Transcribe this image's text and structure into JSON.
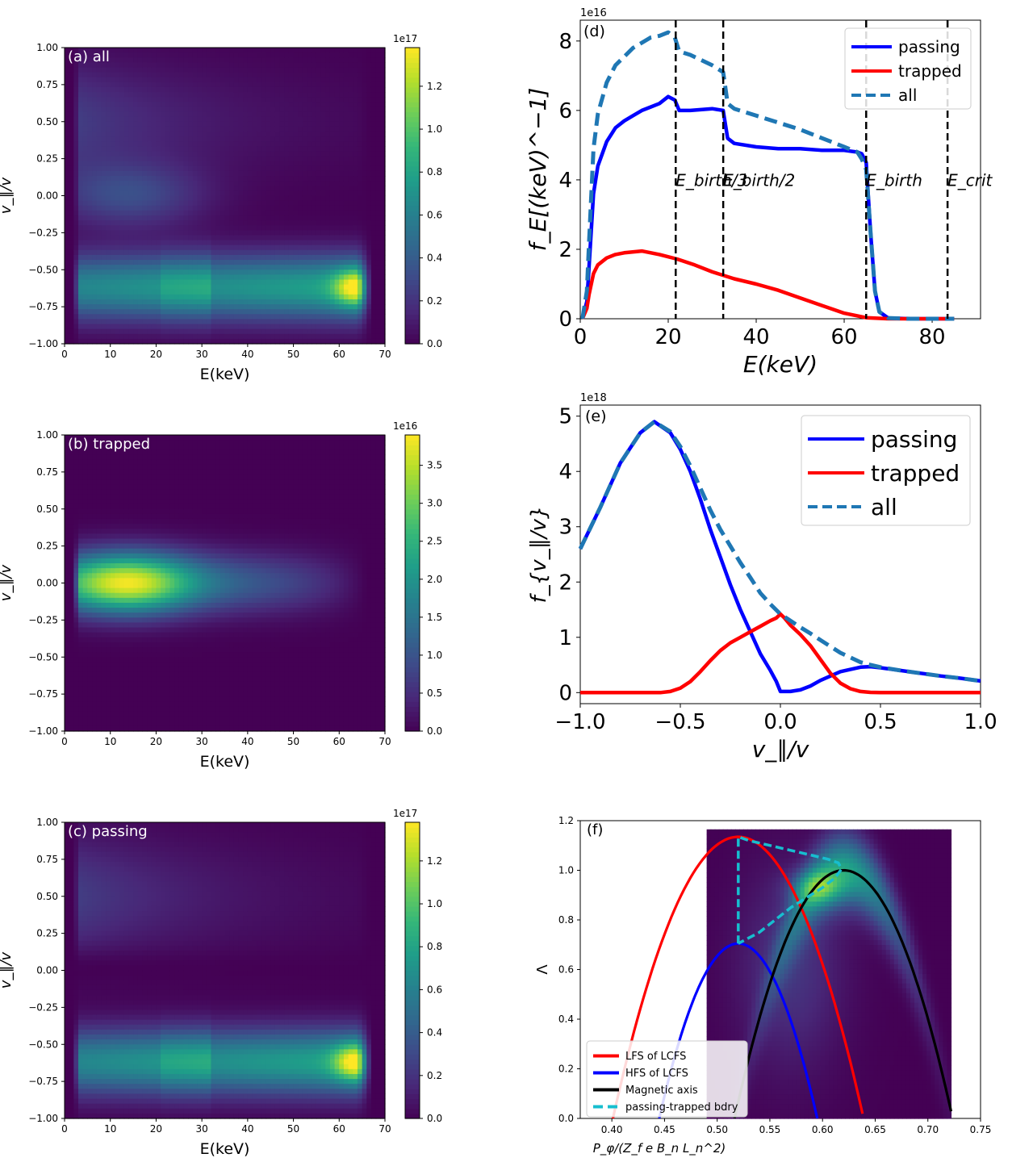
{
  "chart_data": [
    {
      "panel": "a",
      "type": "heatmap",
      "label": "(a) all",
      "xlabel": "E(keV)",
      "ylabel": "v_∥/v",
      "xlim": [
        0,
        70
      ],
      "ylim": [
        -1.0,
        1.0
      ],
      "xticks": [
        "0",
        "10",
        "20",
        "30",
        "40",
        "50",
        "60",
        "70"
      ],
      "yticks": [
        "−1.00",
        "−0.75",
        "−0.50",
        "−0.25",
        "0.00",
        "0.25",
        "0.50",
        "0.75",
        "1.00"
      ],
      "colorbar": {
        "exponent": "1e17",
        "min": 0,
        "max": 1.38,
        "ticks": [
          "0.0",
          "0.2",
          "0.4",
          "0.6",
          "0.8",
          "1.0",
          "1.2"
        ]
      },
      "peaks": [
        {
          "e": 64,
          "xi": -0.62,
          "value": 1.38
        },
        {
          "e": 30,
          "xi": -0.6,
          "value": 0.75
        },
        {
          "e": 15,
          "xi": 0.4,
          "value": 0.25
        }
      ]
    },
    {
      "panel": "b",
      "type": "heatmap",
      "label": "(b) trapped",
      "xlabel": "E(keV)",
      "ylabel": "v_∥/v",
      "xlim": [
        0,
        70
      ],
      "ylim": [
        -1.0,
        1.0
      ],
      "xticks": [
        "0",
        "10",
        "20",
        "30",
        "40",
        "50",
        "60",
        "70"
      ],
      "yticks": [
        "−1.00",
        "−0.75",
        "−0.50",
        "−0.25",
        "0.00",
        "0.25",
        "0.50",
        "0.75",
        "1.00"
      ],
      "colorbar": {
        "exponent": "1e16",
        "min": 0,
        "max": 3.9,
        "ticks": [
          "0.0",
          "0.5",
          "1.0",
          "1.5",
          "2.0",
          "2.5",
          "3.0",
          "3.5"
        ]
      },
      "peaks": [
        {
          "e": 14,
          "xi": 0.0,
          "value": 3.9
        }
      ]
    },
    {
      "panel": "c",
      "type": "heatmap",
      "label": "(c) passing",
      "xlabel": "E(keV)",
      "ylabel": "v_∥/v",
      "xlim": [
        0,
        70
      ],
      "ylim": [
        -1.0,
        1.0
      ],
      "xticks": [
        "0",
        "10",
        "20",
        "30",
        "40",
        "50",
        "60",
        "70"
      ],
      "yticks": [
        "−1.00",
        "−0.75",
        "−0.50",
        "−0.25",
        "0.00",
        "0.25",
        "0.50",
        "0.75",
        "1.00"
      ],
      "colorbar": {
        "exponent": "1e17",
        "min": 0,
        "max": 1.38,
        "ticks": [
          "0.0",
          "0.2",
          "0.4",
          "0.6",
          "0.8",
          "1.0",
          "1.2"
        ]
      },
      "peaks": [
        {
          "e": 64,
          "xi": -0.62,
          "value": 1.38
        },
        {
          "e": 30,
          "xi": -0.6,
          "value": 0.75
        },
        {
          "e": 15,
          "xi": 0.55,
          "value": 0.25
        }
      ]
    },
    {
      "panel": "d",
      "type": "line",
      "label": "(d)",
      "xlabel": "E(keV)",
      "ylabel": "f_E[(keV)^−1]",
      "exponent": "1e16",
      "xlim": [
        0,
        91
      ],
      "ylim": [
        0,
        8.6
      ],
      "xticks": [
        0,
        20,
        40,
        60,
        80
      ],
      "yticks": [
        0,
        2,
        4,
        6,
        8
      ],
      "series": [
        {
          "name": "passing",
          "color": "#0000ff",
          "dash": false,
          "x": [
            0.5,
            1.5,
            2,
            3,
            4,
            6,
            8,
            10,
            12,
            14,
            16,
            18,
            20,
            21.5,
            22.5,
            25,
            30,
            32.5,
            33.5,
            35,
            40,
            45,
            50,
            55,
            60,
            63,
            64,
            65,
            66,
            67,
            68,
            70,
            75,
            85
          ],
          "y": [
            0,
            0.5,
            1.5,
            3.6,
            4.4,
            5.1,
            5.5,
            5.7,
            5.85,
            6.0,
            6.1,
            6.2,
            6.4,
            6.3,
            6.0,
            6.0,
            6.05,
            6.0,
            5.2,
            5.05,
            4.95,
            4.9,
            4.9,
            4.85,
            4.85,
            4.8,
            4.75,
            4.5,
            2.5,
            0.8,
            0.2,
            0.02,
            0,
            0
          ]
        },
        {
          "name": "trapped",
          "color": "#ff0000",
          "dash": false,
          "x": [
            0.5,
            1.5,
            2,
            3,
            4,
            6,
            8,
            10,
            14,
            18,
            22,
            26,
            30,
            35,
            40,
            45,
            50,
            55,
            60,
            65,
            70,
            75,
            85
          ],
          "y": [
            0,
            0.3,
            0.7,
            1.3,
            1.55,
            1.75,
            1.85,
            1.9,
            1.95,
            1.85,
            1.72,
            1.55,
            1.35,
            1.15,
            1.0,
            0.82,
            0.6,
            0.38,
            0.16,
            0.03,
            0,
            0,
            0
          ]
        },
        {
          "name": "all",
          "color": "#1f77b4",
          "dash": true,
          "x": [
            0.5,
            1.5,
            2,
            3,
            4,
            6,
            8,
            10,
            12,
            14,
            16,
            18,
            20,
            21.5,
            22.5,
            25,
            30,
            32.5,
            33.5,
            35,
            40,
            45,
            50,
            55,
            60,
            63,
            64,
            65,
            66,
            67,
            68,
            70,
            75,
            85
          ],
          "y": [
            0,
            0.8,
            2.2,
            4.9,
            5.9,
            6.8,
            7.3,
            7.55,
            7.8,
            7.95,
            8.1,
            8.15,
            8.25,
            8.1,
            7.7,
            7.6,
            7.3,
            7.1,
            6.2,
            6.05,
            5.85,
            5.65,
            5.45,
            5.2,
            4.95,
            4.8,
            4.6,
            4.3,
            2.5,
            0.8,
            0.2,
            0.02,
            0,
            0
          ]
        }
      ],
      "vlines": [
        {
          "x": 21.7,
          "label": "E_birth/3"
        },
        {
          "x": 32.5,
          "label": "E_birth/2"
        },
        {
          "x": 65,
          "label": "E_birth"
        },
        {
          "x": 83.5,
          "label": "E_crit"
        }
      ],
      "legend": [
        "passing",
        "trapped",
        "all"
      ],
      "legend_loc": "top-right"
    },
    {
      "panel": "e",
      "type": "line",
      "label": "(e)",
      "xlabel": "v_∥/v",
      "ylabel": "f_{v_∥/v}",
      "exponent": "1e18",
      "xlim": [
        -1.0,
        1.0
      ],
      "ylim": [
        -0.2,
        5.2
      ],
      "xticks": [
        "−1.0",
        "−0.5",
        "0.0",
        "0.5",
        "1.0"
      ],
      "yticks": [
        0,
        1,
        2,
        3,
        4,
        5
      ],
      "series": [
        {
          "name": "passing",
          "color": "#0000ff",
          "dash": false,
          "x": [
            -1.0,
            -0.9,
            -0.8,
            -0.7,
            -0.63,
            -0.55,
            -0.5,
            -0.45,
            -0.4,
            -0.35,
            -0.3,
            -0.25,
            -0.2,
            -0.15,
            -0.1,
            -0.05,
            -0.02,
            0,
            0.05,
            0.1,
            0.15,
            0.2,
            0.3,
            0.4,
            0.45,
            0.5,
            0.6,
            0.7,
            0.8,
            0.9,
            1.0
          ],
          "y": [
            2.6,
            3.35,
            4.15,
            4.7,
            4.9,
            4.7,
            4.4,
            4.0,
            3.5,
            2.95,
            2.45,
            1.95,
            1.5,
            1.1,
            0.7,
            0.4,
            0.2,
            0.02,
            0.02,
            0.05,
            0.12,
            0.22,
            0.38,
            0.46,
            0.47,
            0.45,
            0.4,
            0.35,
            0.3,
            0.26,
            0.21
          ]
        },
        {
          "name": "trapped",
          "color": "#ff0000",
          "dash": false,
          "x": [
            -1.0,
            -0.7,
            -0.6,
            -0.55,
            -0.5,
            -0.45,
            -0.4,
            -0.35,
            -0.3,
            -0.25,
            -0.2,
            -0.15,
            -0.1,
            -0.05,
            -0.02,
            0,
            0.02,
            0.05,
            0.1,
            0.15,
            0.2,
            0.25,
            0.3,
            0.35,
            0.4,
            0.45,
            0.5,
            0.6,
            0.7,
            1.0
          ],
          "y": [
            0,
            0,
            0,
            0.02,
            0.08,
            0.2,
            0.38,
            0.58,
            0.76,
            0.9,
            1.0,
            1.1,
            1.2,
            1.3,
            1.35,
            1.42,
            1.35,
            1.22,
            1.05,
            0.85,
            0.6,
            0.35,
            0.17,
            0.07,
            0.02,
            0.005,
            0,
            0,
            0,
            0
          ]
        },
        {
          "name": "all",
          "color": "#1f77b4",
          "dash": true,
          "x": [
            -1.0,
            -0.9,
            -0.8,
            -0.7,
            -0.63,
            -0.55,
            -0.5,
            -0.45,
            -0.4,
            -0.35,
            -0.3,
            -0.25,
            -0.2,
            -0.15,
            -0.1,
            -0.05,
            0,
            0.05,
            0.1,
            0.15,
            0.2,
            0.3,
            0.4,
            0.45,
            0.5,
            0.6,
            0.7,
            0.8,
            0.9,
            1.0
          ],
          "y": [
            2.6,
            3.35,
            4.15,
            4.7,
            4.9,
            4.72,
            4.45,
            4.1,
            3.7,
            3.3,
            2.95,
            2.65,
            2.35,
            2.08,
            1.8,
            1.6,
            1.42,
            1.3,
            1.18,
            1.07,
            0.95,
            0.72,
            0.55,
            0.5,
            0.46,
            0.4,
            0.35,
            0.3,
            0.26,
            0.21
          ]
        }
      ],
      "legend": [
        "passing",
        "trapped",
        "all"
      ],
      "legend_loc": "top-right"
    },
    {
      "panel": "f",
      "type": "line",
      "label": "(f)",
      "xlabel": "P_φ/(Z_f e B_n L_n^2)",
      "ylabel": "Λ",
      "xlim": [
        0.37,
        0.75
      ],
      "ylim": [
        0,
        1.2
      ],
      "xticks": [
        "0.40",
        "0.45",
        "0.50",
        "0.55",
        "0.60",
        "0.65",
        "0.70",
        "0.75"
      ],
      "yticks": [
        "0.0",
        "0.2",
        "0.4",
        "0.6",
        "0.8",
        "1.0",
        "1.2"
      ],
      "background": {
        "xmin": 0.49,
        "xmax": 0.722,
        "ymin": 0,
        "ymax": 1.165
      },
      "series": [
        {
          "name": "LFS of LCFS",
          "color": "#ff0000",
          "dash": false,
          "vertex": [
            0.52,
            1.135
          ],
          "roots": [
            0.4,
            0.638
          ]
        },
        {
          "name": "HFS of LCFS",
          "color": "#0000ff",
          "dash": false,
          "vertex": [
            0.52,
            0.705
          ],
          "roots": [
            0.445,
            0.595
          ]
        },
        {
          "name": "Magnetic axis",
          "color": "#000000",
          "dash": false,
          "vertex": [
            0.62,
            1.0
          ],
          "roots": [
            0.515,
            0.722
          ]
        },
        {
          "name": "passing-trapped bdry",
          "color": "#17becf",
          "dash": true,
          "x": [
            0.52,
            0.52,
            0.53,
            0.545,
            0.56,
            0.575,
            0.59,
            0.605,
            0.615,
            0.618,
            0.612,
            0.6,
            0.585,
            0.57,
            0.555,
            0.54,
            0.52
          ],
          "y": [
            0.705,
            1.135,
            1.12,
            1.105,
            1.09,
            1.075,
            1.06,
            1.045,
            1.03,
            1.005,
            0.97,
            0.93,
            0.89,
            0.85,
            0.8,
            0.75,
            0.705
          ]
        }
      ],
      "legend": [
        "LFS of LCFS",
        "HFS of LCFS",
        "Magnetic axis",
        "passing-trapped bdry"
      ],
      "legend_loc": "bottom-left"
    }
  ]
}
